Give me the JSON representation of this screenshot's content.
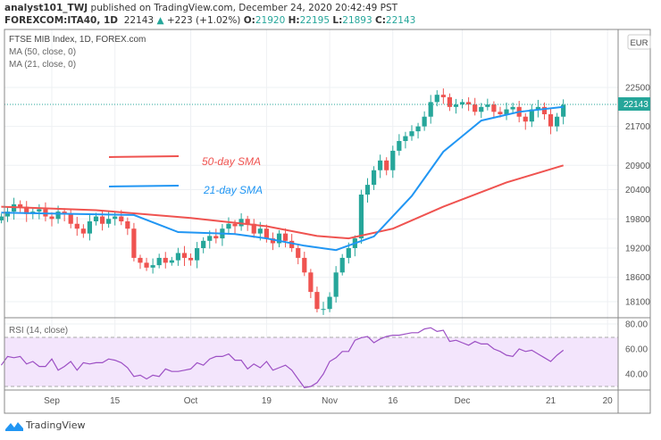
{
  "header": {
    "author": "analyst101_TWJ",
    "published": "published on TradingView.com, December 24, 2020 20:42:49 PST",
    "symbol": "FOREXCOM:ITA40, 1D",
    "last": "22143",
    "change": "+223 (+1.02%)",
    "o_label": "O:",
    "o": "21920",
    "h_label": "H:",
    "h": "22195",
    "l_label": "L:",
    "l": "21893",
    "c_label": "C:",
    "c": "22143"
  },
  "legend": {
    "title": "FTSE MIB Index, 1D, FOREX.com",
    "ma50": "MA (50, close, 0)",
    "ma21": "MA (21, close, 0)"
  },
  "annotations": {
    "sma50": "50-day SMA",
    "sma21": "21-day SMA"
  },
  "currency": "EUR",
  "current_price_label": "22143",
  "rsi_label": "RSI (14, close)",
  "brand": "TradingView",
  "colors": {
    "up": "#26a69a",
    "down": "#ef5350",
    "ma50": "#ef5350",
    "ma21": "#2196f3",
    "rsi": "#9c4fc4",
    "rsi_band": "#f3e5fc"
  },
  "chart_data": {
    "type": "candlestick",
    "title": "FTSE MIB Index, 1D, FOREX.com",
    "price_ticks": [
      22500,
      21700,
      20900,
      20400,
      19800,
      19200,
      18600,
      18100
    ],
    "price_range": [
      17900,
      23300
    ],
    "time_ticks": [
      {
        "label": "Sep",
        "index": 8
      },
      {
        "label": "15",
        "index": 18
      },
      {
        "label": "Oct",
        "index": 30
      },
      {
        "label": "19",
        "index": 42
      },
      {
        "label": "Nov",
        "index": 52
      },
      {
        "label": "16",
        "index": 62
      },
      {
        "label": "Dec",
        "index": 73
      },
      {
        "label": "21",
        "index": 87
      },
      {
        "label": "20",
        "index": 96
      }
    ],
    "closes": [
      19850,
      19950,
      20100,
      20050,
      19900,
      19950,
      20000,
      19850,
      19800,
      19950,
      19900,
      19700,
      19600,
      19500,
      19750,
      19850,
      19700,
      19800,
      19850,
      19750,
      19600,
      19000,
      18900,
      18800,
      18850,
      19000,
      18900,
      18950,
      19100,
      19000,
      18950,
      19200,
      19350,
      19450,
      19400,
      19600,
      19700,
      19650,
      19800,
      19700,
      19500,
      19600,
      19400,
      19300,
      19500,
      19350,
      19200,
      19000,
      18700,
      18300,
      17950,
      17950,
      18200,
      18700,
      19000,
      19200,
      19400,
      20300,
      20500,
      20800,
      21000,
      20800,
      21200,
      21400,
      21500,
      21600,
      21700,
      21900,
      22200,
      22350,
      22300,
      22100,
      22150,
      22200,
      22150,
      22000,
      22100,
      22150,
      22000,
      21950,
      22050,
      22100,
      21900,
      21800,
      22050,
      22100,
      21950,
      21700,
      21900,
      22143
    ],
    "ma50": [
      [
        0,
        20050
      ],
      [
        15,
        19980
      ],
      [
        30,
        19820
      ],
      [
        42,
        19650
      ],
      [
        50,
        19450
      ],
      [
        55,
        19400
      ],
      [
        62,
        19600
      ],
      [
        70,
        20050
      ],
      [
        80,
        20550
      ],
      [
        89,
        20900
      ]
    ],
    "ma21": [
      [
        0,
        19930
      ],
      [
        21,
        19880
      ],
      [
        28,
        19530
      ],
      [
        37,
        19490
      ],
      [
        42,
        19400
      ],
      [
        48,
        19250
      ],
      [
        53,
        19160
      ],
      [
        59,
        19440
      ],
      [
        65,
        20270
      ],
      [
        70,
        21180
      ],
      [
        76,
        21820
      ],
      [
        82,
        22000
      ],
      [
        89,
        22100
      ]
    ],
    "rsi": {
      "ticks": [
        80,
        60,
        40
      ],
      "bands": [
        70,
        30
      ],
      "values": [
        47,
        54,
        53,
        54,
        48,
        50,
        46,
        46,
        52,
        43,
        46,
        50,
        43,
        49,
        48,
        49,
        49,
        52,
        51,
        49,
        45,
        38,
        39,
        36,
        39,
        38,
        44,
        42,
        42,
        43,
        44,
        49,
        47,
        52,
        54,
        54,
        56,
        51,
        51,
        44,
        48,
        45,
        50,
        43,
        45,
        47,
        43,
        36,
        29,
        30,
        33,
        40,
        50,
        53,
        58,
        58,
        67,
        69,
        70,
        65,
        68,
        70,
        71,
        71,
        72,
        73,
        73,
        76,
        77,
        74,
        75,
        66,
        67,
        65,
        63,
        66,
        64,
        64,
        60,
        58,
        55,
        54,
        60,
        58,
        59,
        56,
        53,
        50,
        55,
        59
      ]
    }
  }
}
